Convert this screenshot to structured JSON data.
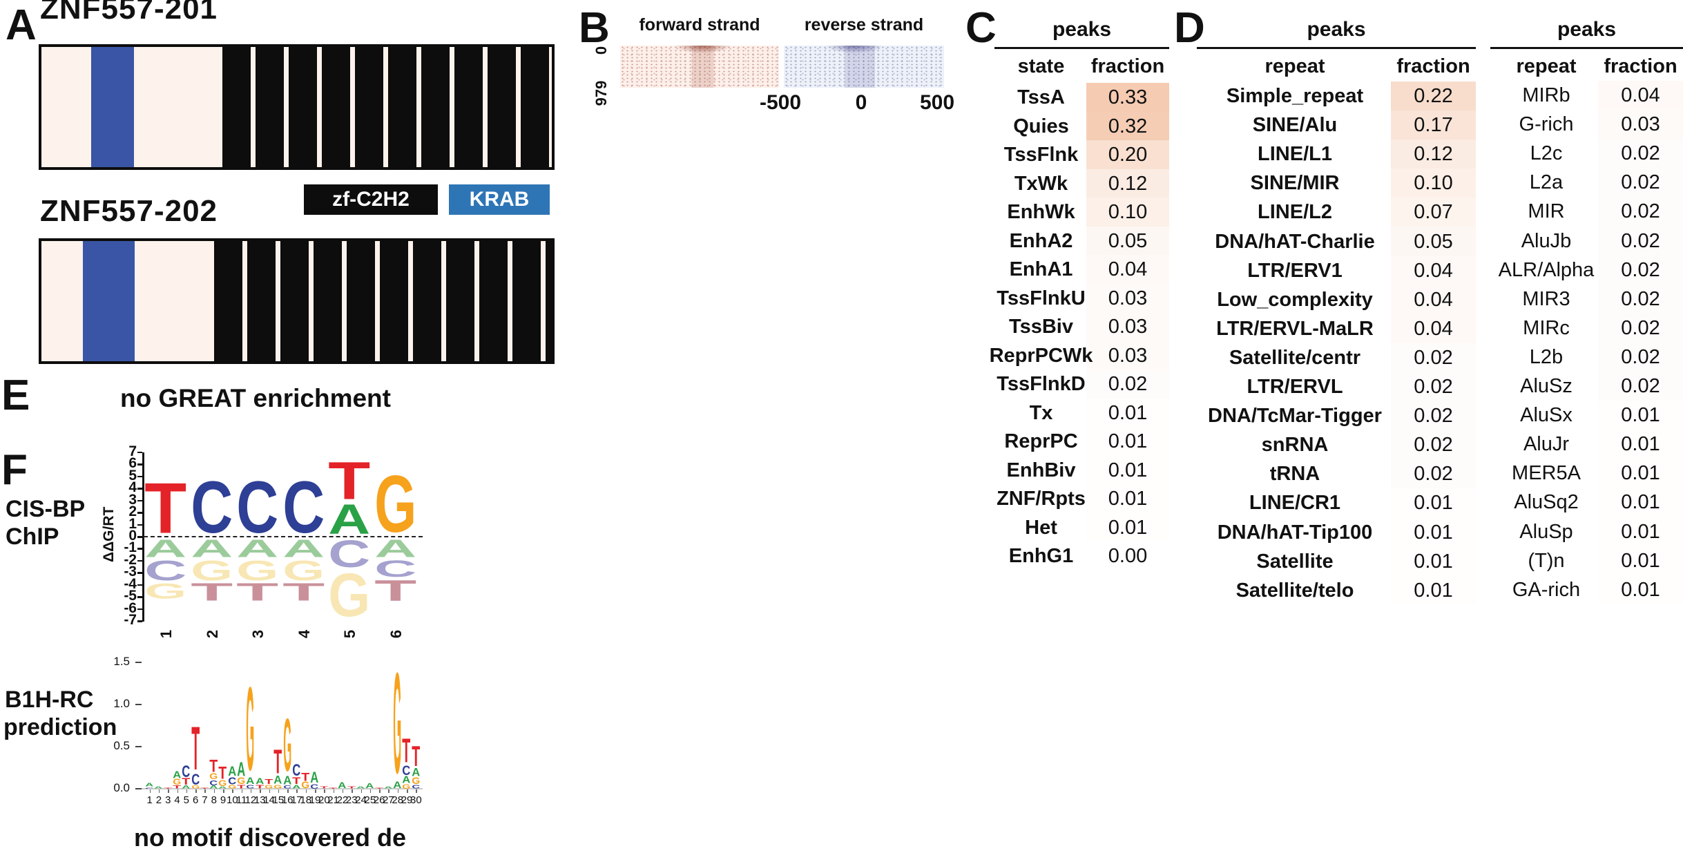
{
  "panels": {
    "a": "A",
    "b": "B",
    "c": "C",
    "d": "D",
    "e": "E",
    "f": "F"
  },
  "panel_a": {
    "transcript1": "ZNF557-201",
    "transcript2": "ZNF557-202",
    "legend": [
      {
        "label": "zf-C2H2",
        "color": "#0d0d0d"
      },
      {
        "label": "KRAB",
        "color": "#2e75b6"
      }
    ],
    "domain_blue": "#3a55a5",
    "body_cream": "#fdf2ec"
  },
  "panel_b": {
    "left_title": "forward strand",
    "right_title": "reverse strand",
    "y_top": "0",
    "y_bottom": "979",
    "x_ticks": [
      "-500",
      "0",
      "500"
    ]
  },
  "panel_c": {
    "header": "peaks",
    "col1": "state",
    "col2": "fraction",
    "rows": [
      [
        "TssA",
        "0.33"
      ],
      [
        "Quies",
        "0.32"
      ],
      [
        "TssFlnk",
        "0.20"
      ],
      [
        "TxWk",
        "0.12"
      ],
      [
        "EnhWk",
        "0.10"
      ],
      [
        "EnhA2",
        "0.05"
      ],
      [
        "EnhA1",
        "0.04"
      ],
      [
        "TssFlnkU",
        "0.03"
      ],
      [
        "TssBiv",
        "0.03"
      ],
      [
        "ReprPCWk",
        "0.03"
      ],
      [
        "TssFlnkD",
        "0.02"
      ],
      [
        "Tx",
        "0.01"
      ],
      [
        "ReprPC",
        "0.01"
      ],
      [
        "EnhBiv",
        "0.01"
      ],
      [
        "ZNF/Rpts",
        "0.01"
      ],
      [
        "Het",
        "0.01"
      ],
      [
        "EnhG1",
        "0.00"
      ]
    ]
  },
  "panel_d": {
    "header_left": "peaks",
    "header_right": "peaks",
    "col1": "repeat",
    "col2": "fraction",
    "rows_left": [
      [
        "Simple_repeat",
        "0.22"
      ],
      [
        "SINE/Alu",
        "0.17"
      ],
      [
        "LINE/L1",
        "0.12"
      ],
      [
        "SINE/MIR",
        "0.10"
      ],
      [
        "LINE/L2",
        "0.07"
      ],
      [
        "DNA/hAT-Charlie",
        "0.05"
      ],
      [
        "LTR/ERV1",
        "0.04"
      ],
      [
        "Low_complexity",
        "0.04"
      ],
      [
        "LTR/ERVL-MaLR",
        "0.04"
      ],
      [
        "Satellite/centr",
        "0.02"
      ],
      [
        "LTR/ERVL",
        "0.02"
      ],
      [
        "DNA/TcMar-Tigger",
        "0.02"
      ],
      [
        "snRNA",
        "0.02"
      ],
      [
        "tRNA",
        "0.02"
      ],
      [
        "LINE/CR1",
        "0.01"
      ],
      [
        "DNA/hAT-Tip100",
        "0.01"
      ],
      [
        "Satellite",
        "0.01"
      ],
      [
        "Satellite/telo",
        "0.01"
      ]
    ],
    "rows_right": [
      [
        "MIRb",
        "0.04"
      ],
      [
        "G-rich",
        "0.03"
      ],
      [
        "L2c",
        "0.02"
      ],
      [
        "L2a",
        "0.02"
      ],
      [
        "MIR",
        "0.02"
      ],
      [
        "AluJb",
        "0.02"
      ],
      [
        "ALR/Alpha",
        "0.02"
      ],
      [
        "MIR3",
        "0.02"
      ],
      [
        "MIRc",
        "0.02"
      ],
      [
        "L2b",
        "0.02"
      ],
      [
        "AluSz",
        "0.02"
      ],
      [
        "AluSx",
        "0.01"
      ],
      [
        "AluJr",
        "0.01"
      ],
      [
        "MER5A",
        "0.01"
      ],
      [
        "AluSq2",
        "0.01"
      ],
      [
        "AluSp",
        "0.01"
      ],
      [
        "(T)n",
        "0.01"
      ],
      [
        "GA-rich",
        "0.01"
      ]
    ]
  },
  "panel_e": {
    "text": "no GREAT enrichment"
  },
  "panel_f": {
    "label_line1": "CIS-BP",
    "label_line2": "ChIP",
    "label_line3": "B1H-RC",
    "label_line4": "prediction",
    "note": "no motif discovered de novo",
    "logo1": {
      "ylabel": "ΔΔG/RT",
      "yticks": [
        7,
        6,
        5,
        4,
        3,
        2,
        1,
        0,
        -1,
        -2,
        -3,
        -4,
        -5,
        -6,
        -7
      ],
      "xlabels": [
        "1",
        "2",
        "3",
        "4",
        "5",
        "6"
      ],
      "above": [
        [
          [
            "T",
            4.9
          ]
        ],
        [
          [
            "C",
            5.0
          ]
        ],
        [
          [
            "C",
            5.0
          ]
        ],
        [
          [
            "C",
            5.0
          ]
        ],
        [
          [
            "A",
            2.9
          ],
          [
            "T",
            3.6
          ]
        ],
        [
          [
            "G",
            5.5
          ]
        ]
      ],
      "below": [
        [
          [
            "A",
            1.7
          ],
          [
            "C",
            1.9
          ],
          [
            "G",
            1.5
          ]
        ],
        [
          [
            "A",
            1.7
          ],
          [
            "G",
            1.9
          ],
          [
            "T",
            1.7
          ]
        ],
        [
          [
            "A",
            1.7
          ],
          [
            "G",
            1.9
          ],
          [
            "T",
            1.7
          ]
        ],
        [
          [
            "A",
            1.7
          ],
          [
            "G",
            1.9
          ],
          [
            "T",
            1.7
          ]
        ],
        [
          [
            "C",
            2.6
          ],
          [
            "G",
            4.2
          ]
        ],
        [
          [
            "A",
            1.7
          ],
          [
            "C",
            1.6
          ],
          [
            "T",
            2.0
          ]
        ]
      ]
    },
    "logo2": {
      "yticks": [
        "1.5",
        "1.0",
        "0.5",
        "0.0"
      ],
      "xlabels": [
        "1",
        "2",
        "3",
        "4",
        "5",
        "6",
        "7",
        "8",
        "9",
        "10",
        "11",
        "12",
        "13",
        "14",
        "15",
        "16",
        "17",
        "18",
        "19",
        "20",
        "21",
        "22",
        "23",
        "24",
        "25",
        "26",
        "27",
        "28",
        "29",
        "30"
      ],
      "stacks": [
        [
          [
            "C",
            0.02
          ],
          [
            "A",
            0.05
          ]
        ],
        [
          [
            "A",
            0.03
          ]
        ],
        [
          [
            "T",
            0.02
          ]
        ],
        [
          [
            "T",
            0.04
          ],
          [
            "G",
            0.08
          ],
          [
            "A",
            0.1
          ]
        ],
        [
          [
            "A",
            0.04
          ],
          [
            "T",
            0.09
          ],
          [
            "C",
            0.16
          ]
        ],
        [
          [
            "G",
            0.04
          ],
          [
            "C",
            0.15
          ],
          [
            "T",
            0.6
          ]
        ],
        [
          [
            "T",
            0.02
          ]
        ],
        [
          [
            "A",
            0.04
          ],
          [
            "C",
            0.07
          ],
          [
            "G",
            0.08
          ],
          [
            "T",
            0.17
          ]
        ],
        [
          [
            "A",
            0.03
          ],
          [
            "G",
            0.08
          ],
          [
            "T",
            0.17
          ]
        ],
        [
          [
            "G",
            0.05
          ],
          [
            "C",
            0.1
          ],
          [
            "A",
            0.13
          ]
        ],
        [
          [
            "T",
            0.05
          ],
          [
            "G",
            0.09
          ],
          [
            "A",
            0.19
          ]
        ],
        [
          [
            "C",
            0.05
          ],
          [
            "A",
            0.09
          ],
          [
            "G",
            1.16
          ]
        ],
        [
          [
            "T",
            0.05
          ],
          [
            "A",
            0.08
          ]
        ],
        [
          [
            "G",
            0.05
          ],
          [
            "T",
            0.07
          ]
        ],
        [
          [
            "G",
            0.05
          ],
          [
            "A",
            0.11
          ],
          [
            "T",
            0.33
          ]
        ],
        [
          [
            "C",
            0.04
          ],
          [
            "A",
            0.12
          ],
          [
            "G",
            0.73
          ]
        ],
        [
          [
            "A",
            0.05
          ],
          [
            "T",
            0.09
          ],
          [
            "C",
            0.16
          ]
        ],
        [
          [
            "G",
            0.09
          ],
          [
            "T",
            0.11
          ]
        ],
        [
          [
            "C",
            0.06
          ],
          [
            "A",
            0.15
          ]
        ],
        [
          [
            "T",
            0.03
          ]
        ],
        [
          [
            "T",
            0.02
          ]
        ],
        [
          [
            "A",
            0.08
          ]
        ],
        [
          [
            "T",
            0.03
          ]
        ],
        [
          [
            "A",
            0.03
          ]
        ],
        [
          [
            "A",
            0.07
          ]
        ],
        [
          [
            "T",
            0.02
          ]
        ],
        [
          [
            "A",
            0.03
          ]
        ],
        [
          [
            "A",
            0.09
          ],
          [
            "G",
            1.4
          ]
        ],
        [
          [
            "G",
            0.06
          ],
          [
            "A",
            0.1
          ],
          [
            "C",
            0.13
          ],
          [
            "T",
            0.33
          ]
        ],
        [
          [
            "C",
            0.05
          ],
          [
            "G",
            0.09
          ],
          [
            "A",
            0.11
          ],
          [
            "T",
            0.28
          ]
        ]
      ]
    }
  },
  "colors": {
    "shade_base": "230,132,72",
    "logo_bright": {
      "A": "#2aa146",
      "C": "#2e3f96",
      "G": "#f6a21d",
      "T": "#e42328"
    },
    "logo_muted": {
      "A": "#9bcb9b",
      "C": "#a5a2cf",
      "G": "#f8e7b4",
      "T": "#c9909a"
    }
  }
}
